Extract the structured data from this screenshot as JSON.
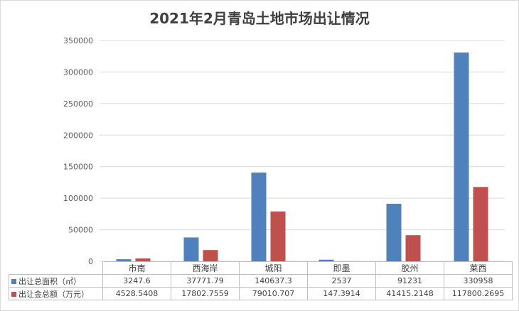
{
  "title": "2021年2月青岛土地市场出让情况",
  "chart_data": {
    "type": "bar",
    "title": "2021年2月青岛土地市场出让情况",
    "categories": [
      "市南",
      "西海岸",
      "城阳",
      "即墨",
      "胶州",
      "莱西"
    ],
    "ylim": [
      0,
      350000
    ],
    "yticks": [
      "0",
      "50000",
      "100000",
      "150000",
      "200000",
      "250000",
      "300000",
      "350000"
    ],
    "grid": true,
    "legend": "data-table",
    "series": [
      {
        "name": "出让总面积（㎡）",
        "color": "#4f81bd",
        "values": [
          3247.6,
          37771.79,
          140637.3,
          2537,
          91231,
          330958
        ],
        "labels": [
          "3247.6",
          "37771.79",
          "140637.3",
          "2537",
          "91231",
          "330958"
        ]
      },
      {
        "name": "出让金总额（万元）",
        "color": "#c0504d",
        "values": [
          4528.5408,
          17802.7559,
          79010.707,
          147.3914,
          41415.2148,
          117800.2695
        ],
        "labels": [
          "4528.5408",
          "17802.7559",
          "79010.707",
          "147.3914",
          "41415.2148",
          "117800.2695"
        ]
      }
    ]
  }
}
